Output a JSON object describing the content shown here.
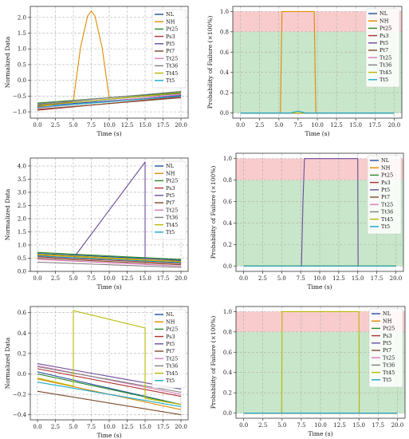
{
  "legend_labels": [
    "NL",
    "NH",
    "Pt25",
    "Ps3",
    "Pt5",
    "Pt7",
    "Tt25",
    "Tt36",
    "Tt45",
    "Tt5"
  ],
  "colors": [
    "#1f4e9c",
    "#e08a00",
    "#2a8a2a",
    "#b03030",
    "#6a4c9c",
    "#7a4a2a",
    "#d878b8",
    "#7f7f7f",
    "#b8b800",
    "#17a8c8"
  ],
  "zone_colors": {
    "safe": "#c8e6c9",
    "fail": "#f8cccc"
  },
  "chart_data": [
    {
      "type": "line",
      "xlabel": "Time (s)",
      "ylabel": "Normalized Data",
      "xlim": [
        -1,
        21
      ],
      "ylim": [
        -1.2,
        2.35
      ],
      "xticks": [
        0,
        2.5,
        5,
        7.5,
        10,
        12.5,
        15,
        17.5,
        20
      ],
      "xtick_labels": [
        "0.0",
        "2.5",
        "5.0",
        "7.5",
        "10.0",
        "12.5",
        "15.0",
        "17.5",
        "20.0"
      ],
      "yticks": [
        -1,
        -0.5,
        0,
        0.5,
        1,
        1.5,
        2
      ],
      "ytick_labels": [
        "−1.0",
        "−0.5",
        "0.0",
        "0.5",
        "1.0",
        "1.5",
        "2.0"
      ],
      "grid": true,
      "legend": "right",
      "series": [
        {
          "name": "NL",
          "x": [
            0,
            20
          ],
          "y": [
            -0.82,
            -0.48
          ]
        },
        {
          "name": "NH",
          "x": [
            0,
            5,
            6,
            7,
            7.5,
            8,
            9,
            10,
            20
          ],
          "y": [
            -0.85,
            -0.65,
            1.05,
            2.05,
            2.2,
            2.05,
            1.05,
            -0.55,
            -0.38
          ]
        },
        {
          "name": "Pt25",
          "x": [
            0,
            20
          ],
          "y": [
            -0.72,
            -0.38
          ]
        },
        {
          "name": "Ps3",
          "x": [
            0,
            20
          ],
          "y": [
            -0.95,
            -0.52
          ]
        },
        {
          "name": "Pt5",
          "x": [
            0,
            20
          ],
          "y": [
            -0.78,
            -0.42
          ]
        },
        {
          "name": "Pt7",
          "x": [
            0,
            20
          ],
          "y": [
            -0.92,
            -0.55
          ]
        },
        {
          "name": "Tt25",
          "x": [
            0,
            20
          ],
          "y": [
            -0.88,
            -0.45
          ]
        },
        {
          "name": "Tt36",
          "x": [
            0,
            20
          ],
          "y": [
            -0.75,
            -0.35
          ]
        },
        {
          "name": "Tt45",
          "x": [
            0,
            20
          ],
          "y": [
            -0.8,
            -0.4
          ]
        },
        {
          "name": "Tt5",
          "x": [
            0,
            20
          ],
          "y": [
            -0.86,
            -0.5
          ]
        }
      ]
    },
    {
      "type": "line",
      "xlabel": "Time (s)",
      "ylabel": "Probability of Failure (×100%)",
      "xlim": [
        -1,
        21
      ],
      "ylim": [
        -0.05,
        1.05
      ],
      "xticks": [
        0,
        2.5,
        5,
        7.5,
        10,
        12.5,
        15,
        17.5,
        20
      ],
      "xtick_labels": [
        "0.0",
        "2.5",
        "5.0",
        "7.5",
        "10.0",
        "12.5",
        "15.0",
        "17.5",
        "20.0"
      ],
      "yticks": [
        0,
        0.2,
        0.4,
        0.6,
        0.8,
        1.0
      ],
      "ytick_labels": [
        "0.0",
        "0.2",
        "0.4",
        "0.6",
        "0.8",
        "1.0"
      ],
      "threshold": 0.8,
      "grid": true,
      "legend": "top-right",
      "series": [
        {
          "name": "NL",
          "x": [
            0,
            20
          ],
          "y": [
            0,
            0
          ]
        },
        {
          "name": "NH",
          "x": [
            0,
            5.2,
            5.4,
            9.6,
            9.8,
            20
          ],
          "y": [
            0,
            0,
            1,
            1,
            0,
            0
          ]
        },
        {
          "name": "Pt25",
          "x": [
            0,
            20
          ],
          "y": [
            0,
            0
          ]
        },
        {
          "name": "Ps3",
          "x": [
            0,
            20
          ],
          "y": [
            0,
            0
          ]
        },
        {
          "name": "Pt5",
          "x": [
            0,
            20
          ],
          "y": [
            0,
            0
          ]
        },
        {
          "name": "Pt7",
          "x": [
            0,
            20
          ],
          "y": [
            0,
            0
          ]
        },
        {
          "name": "Tt25",
          "x": [
            0,
            20
          ],
          "y": [
            0,
            0
          ]
        },
        {
          "name": "Tt36",
          "x": [
            0,
            20
          ],
          "y": [
            0,
            0
          ]
        },
        {
          "name": "Tt45",
          "x": [
            0,
            20
          ],
          "y": [
            0,
            0
          ]
        },
        {
          "name": "Tt5",
          "x": [
            0,
            6.5,
            7,
            7.5,
            8,
            8.5,
            20
          ],
          "y": [
            0,
            0,
            0.01,
            0.02,
            0.01,
            0,
            0
          ]
        }
      ]
    },
    {
      "type": "line",
      "xlabel": "Time (s)",
      "ylabel": "Normalized Data",
      "xlim": [
        -1,
        21
      ],
      "ylim": [
        0,
        4.3
      ],
      "xticks": [
        0,
        2.5,
        5,
        7.5,
        10,
        12.5,
        15,
        17.5,
        20
      ],
      "xtick_labels": [
        "0.0",
        "2.5",
        "5.0",
        "7.5",
        "10.0",
        "12.5",
        "15.0",
        "17.5",
        "20.0"
      ],
      "yticks": [
        0,
        0.5,
        1,
        1.5,
        2,
        2.5,
        3,
        3.5,
        4
      ],
      "ytick_labels": [
        "0.0",
        "0.5",
        "1.0",
        "1.5",
        "2.0",
        "2.5",
        "3.0",
        "3.5",
        "4.0"
      ],
      "grid": true,
      "legend": "right",
      "series": [
        {
          "name": "NL",
          "x": [
            0,
            20
          ],
          "y": [
            0.68,
            0.42
          ]
        },
        {
          "name": "NH",
          "x": [
            0,
            20
          ],
          "y": [
            0.62,
            0.36
          ]
        },
        {
          "name": "Pt25",
          "x": [
            0,
            20
          ],
          "y": [
            0.72,
            0.45
          ]
        },
        {
          "name": "Ps3",
          "x": [
            0,
            20
          ],
          "y": [
            0.55,
            0.3
          ]
        },
        {
          "name": "Pt5",
          "x": [
            0,
            5,
            15,
            15,
            20
          ],
          "y": [
            0.6,
            0.5,
            4.15,
            0.5,
            0.4
          ]
        },
        {
          "name": "Pt7",
          "x": [
            0,
            20
          ],
          "y": [
            0.5,
            0.25
          ]
        },
        {
          "name": "Tt25",
          "x": [
            0,
            20
          ],
          "y": [
            0.45,
            0.2
          ]
        },
        {
          "name": "Tt36",
          "x": [
            0,
            20
          ],
          "y": [
            0.35,
            0.15
          ]
        },
        {
          "name": "Tt45",
          "x": [
            0,
            20
          ],
          "y": [
            0.65,
            0.38
          ]
        },
        {
          "name": "Tt5",
          "x": [
            0,
            20
          ],
          "y": [
            0.58,
            0.33
          ]
        }
      ]
    },
    {
      "type": "line",
      "xlabel": "Time (s)",
      "ylabel": "Probability of Failure (×100%)",
      "xlim": [
        -1,
        21
      ],
      "ylim": [
        -0.05,
        1.05
      ],
      "xticks": [
        0,
        2.5,
        5,
        7.5,
        10,
        12.5,
        15,
        17.5,
        20
      ],
      "xtick_labels": [
        "0.0",
        "2.5",
        "5.0",
        "7.5",
        "10.0",
        "12.5",
        "15.0",
        "17.5",
        "20.0"
      ],
      "yticks": [
        0,
        0.2,
        0.4,
        0.6,
        0.8,
        1.0
      ],
      "ytick_labels": [
        "0.0",
        "0.2",
        "0.4",
        "0.6",
        "0.8",
        "1.0"
      ],
      "threshold": 0.8,
      "grid": true,
      "legend": "top-right",
      "series": [
        {
          "name": "NL",
          "x": [
            0,
            20
          ],
          "y": [
            0,
            0
          ]
        },
        {
          "name": "NH",
          "x": [
            0,
            20
          ],
          "y": [
            0,
            0
          ]
        },
        {
          "name": "Pt25",
          "x": [
            0,
            20
          ],
          "y": [
            0,
            0
          ]
        },
        {
          "name": "Ps3",
          "x": [
            0,
            20
          ],
          "y": [
            0,
            0
          ]
        },
        {
          "name": "Pt5",
          "x": [
            0,
            7.6,
            7.8,
            8.0,
            15,
            15.05,
            20
          ],
          "y": [
            0,
            0,
            0.6,
            1,
            1,
            0,
            0
          ]
        },
        {
          "name": "Pt7",
          "x": [
            0,
            20
          ],
          "y": [
            0,
            0
          ]
        },
        {
          "name": "Tt25",
          "x": [
            0,
            20
          ],
          "y": [
            0,
            0
          ]
        },
        {
          "name": "Tt36",
          "x": [
            0,
            20
          ],
          "y": [
            0,
            0
          ]
        },
        {
          "name": "Tt45",
          "x": [
            0,
            20
          ],
          "y": [
            0,
            0
          ]
        },
        {
          "name": "Tt5",
          "x": [
            0,
            20
          ],
          "y": [
            0,
            0
          ]
        }
      ]
    },
    {
      "type": "line",
      "xlabel": "Time (s)",
      "ylabel": "Normalized Data",
      "xlim": [
        -1,
        21
      ],
      "ylim": [
        -0.45,
        0.66
      ],
      "xticks": [
        0,
        2.5,
        5,
        7.5,
        10,
        12.5,
        15,
        17.5,
        20
      ],
      "xtick_labels": [
        "0.0",
        "2.5",
        "5.0",
        "7.5",
        "10.0",
        "12.5",
        "15.0",
        "17.5",
        "20.0"
      ],
      "yticks": [
        -0.4,
        -0.2,
        0,
        0.2,
        0.4,
        0.6
      ],
      "ytick_labels": [
        "−0.4",
        "−0.2",
        "0.0",
        "0.2",
        "0.4",
        "0.6"
      ],
      "grid": true,
      "legend": "right",
      "series": [
        {
          "name": "NL",
          "x": [
            0,
            20
          ],
          "y": [
            0.02,
            -0.3
          ]
        },
        {
          "name": "NH",
          "x": [
            0,
            20
          ],
          "y": [
            -0.05,
            -0.35
          ]
        },
        {
          "name": "Pt25",
          "x": [
            0,
            20
          ],
          "y": [
            0.0,
            -0.3
          ]
        },
        {
          "name": "Ps3",
          "x": [
            0,
            20
          ],
          "y": [
            0.05,
            -0.22
          ]
        },
        {
          "name": "Pt5",
          "x": [
            0,
            20
          ],
          "y": [
            0.1,
            -0.15
          ]
        },
        {
          "name": "Pt7",
          "x": [
            0,
            20
          ],
          "y": [
            -0.17,
            -0.4
          ]
        },
        {
          "name": "Tt25",
          "x": [
            0,
            20
          ],
          "y": [
            0.08,
            -0.2
          ]
        },
        {
          "name": "Tt36",
          "x": [
            0,
            20
          ],
          "y": [
            0.07,
            -0.18
          ]
        },
        {
          "name": "Tt45",
          "x": [
            0,
            5,
            5,
            15,
            15,
            20
          ],
          "y": [
            -0.04,
            -0.12,
            0.62,
            0.45,
            -0.24,
            -0.3
          ]
        },
        {
          "name": "Tt5",
          "x": [
            0,
            20
          ],
          "y": [
            -0.08,
            -0.32
          ]
        }
      ]
    },
    {
      "type": "line",
      "xlabel": "Time (s)",
      "ylabel": "Probability of Failure (×100%)",
      "xlim": [
        -1,
        21
      ],
      "ylim": [
        -0.05,
        1.05
      ],
      "xticks": [
        0,
        2.5,
        5,
        7.5,
        10,
        12.5,
        15,
        17.5,
        20
      ],
      "xtick_labels": [
        "0.0",
        "2.5",
        "5.0",
        "7.5",
        "10.0",
        "12.5",
        "15.0",
        "17.5",
        "20.0"
      ],
      "yticks": [
        0,
        0.2,
        0.4,
        0.6,
        0.8,
        1.0
      ],
      "ytick_labels": [
        "0.0",
        "0.2",
        "0.4",
        "0.6",
        "0.8",
        "1.0"
      ],
      "threshold": 0.8,
      "grid": true,
      "legend": "top-right",
      "series": [
        {
          "name": "NL",
          "x": [
            0,
            20
          ],
          "y": [
            0,
            0
          ]
        },
        {
          "name": "NH",
          "x": [
            0,
            20
          ],
          "y": [
            0,
            0
          ]
        },
        {
          "name": "Pt25",
          "x": [
            0,
            20
          ],
          "y": [
            0,
            0
          ]
        },
        {
          "name": "Ps3",
          "x": [
            0,
            20
          ],
          "y": [
            0,
            0
          ]
        },
        {
          "name": "Pt5",
          "x": [
            0,
            20
          ],
          "y": [
            0,
            0
          ]
        },
        {
          "name": "Pt7",
          "x": [
            0,
            20
          ],
          "y": [
            0,
            0
          ]
        },
        {
          "name": "Tt25",
          "x": [
            0,
            20
          ],
          "y": [
            0,
            0
          ]
        },
        {
          "name": "Tt36",
          "x": [
            0,
            20
          ],
          "y": [
            0,
            0
          ]
        },
        {
          "name": "Tt45",
          "x": [
            0,
            4.95,
            5,
            15,
            15.05,
            20
          ],
          "y": [
            0,
            0,
            1,
            1,
            0,
            0
          ]
        },
        {
          "name": "Tt5",
          "x": [
            0,
            20
          ],
          "y": [
            0,
            0
          ]
        }
      ]
    }
  ]
}
